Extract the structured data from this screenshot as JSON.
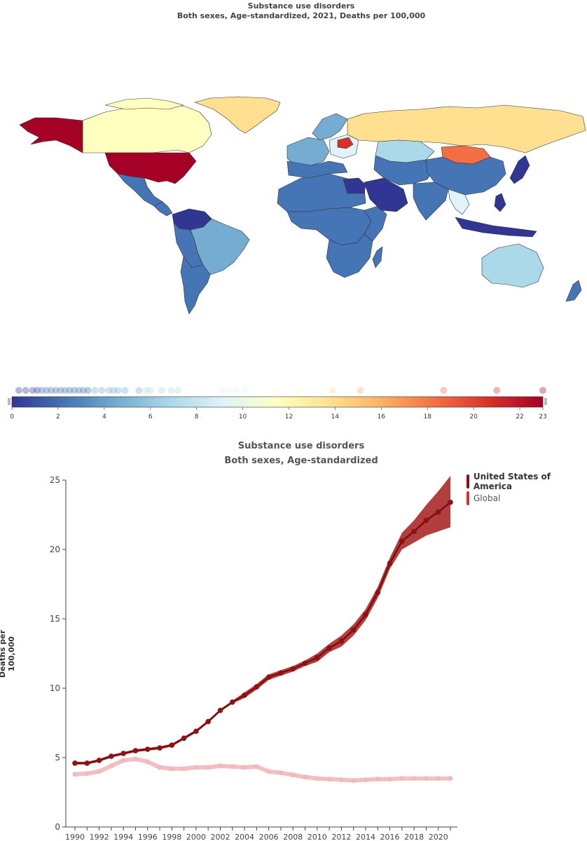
{
  "map": {
    "title_line1": "Substance use disorders",
    "title_line2": "Both sexes, Age-standardized, 2021, Deaths per 100,000",
    "scale": {
      "min": 0,
      "max": 23,
      "ticks": [
        0,
        2,
        4,
        6,
        8,
        10,
        12,
        14,
        16,
        18,
        20,
        22,
        23
      ],
      "colors": [
        "#313695",
        "#4575b4",
        "#74add1",
        "#abd9e9",
        "#e0f3f8",
        "#ffffbf",
        "#fee090",
        "#fdae61",
        "#f46d43",
        "#d73027",
        "#a50026"
      ],
      "dots": [
        0.3,
        0.6,
        0.9,
        1.1,
        1.3,
        1.5,
        1.7,
        1.9,
        2.1,
        2.3,
        2.5,
        2.7,
        2.9,
        3.1,
        3.3,
        3.6,
        3.9,
        4.2,
        4.4,
        4.6,
        4.9,
        5.5,
        5.8,
        6.0,
        6.5,
        6.9,
        7.2,
        9.1,
        9.4,
        9.7,
        10.1,
        11.4,
        12.4,
        13.9,
        15.1,
        18.7,
        21.0,
        23.0
      ]
    }
  },
  "chart_data": {
    "type": "line",
    "title": "Substance use disorders",
    "subtitle": "Both sexes, Age-standardized",
    "ylabel": "Deaths per 100,000",
    "ylim": [
      0,
      25
    ],
    "yticks": [
      0,
      5,
      10,
      15,
      20,
      25
    ],
    "xlim": [
      1990,
      2021
    ],
    "xticks": [
      1990,
      1992,
      1994,
      1996,
      1998,
      2000,
      2002,
      2004,
      2006,
      2008,
      2010,
      2012,
      2014,
      2016,
      2018,
      2020
    ],
    "x": [
      1990,
      1991,
      1992,
      1993,
      1994,
      1995,
      1996,
      1997,
      1998,
      1999,
      2000,
      2001,
      2002,
      2003,
      2004,
      2005,
      2006,
      2007,
      2008,
      2009,
      2010,
      2011,
      2012,
      2013,
      2014,
      2015,
      2016,
      2017,
      2018,
      2019,
      2020,
      2021
    ],
    "series": [
      {
        "name": "United States of America",
        "color": "#a51c1c",
        "values": [
          4.6,
          4.6,
          4.8,
          5.1,
          5.3,
          5.5,
          5.6,
          5.7,
          5.9,
          6.4,
          6.9,
          7.6,
          8.4,
          9.0,
          9.5,
          10.1,
          10.8,
          11.1,
          11.4,
          11.8,
          12.2,
          12.9,
          13.4,
          14.2,
          15.3,
          16.9,
          19.0,
          20.6,
          21.3,
          22.1,
          22.7,
          23.4
        ],
        "lower": [
          4.5,
          4.5,
          4.7,
          5.0,
          5.2,
          5.4,
          5.5,
          5.6,
          5.8,
          6.3,
          6.8,
          7.5,
          8.3,
          8.9,
          9.3,
          9.9,
          10.6,
          10.9,
          11.2,
          11.6,
          11.9,
          12.6,
          13.0,
          13.8,
          14.9,
          16.5,
          18.6,
          20.0,
          20.5,
          21.0,
          21.3,
          21.6
        ],
        "upper": [
          4.7,
          4.7,
          4.9,
          5.2,
          5.4,
          5.6,
          5.7,
          5.8,
          6.0,
          6.5,
          7.0,
          7.7,
          8.5,
          9.1,
          9.7,
          10.3,
          11.0,
          11.3,
          11.6,
          12.0,
          12.5,
          13.2,
          13.8,
          14.6,
          15.7,
          17.3,
          19.4,
          21.2,
          22.1,
          23.2,
          24.2,
          25.3
        ]
      },
      {
        "name": "Global",
        "color": "#f2b8bd",
        "values": [
          3.8,
          3.85,
          4.0,
          4.4,
          4.8,
          4.9,
          4.7,
          4.3,
          4.2,
          4.2,
          4.3,
          4.3,
          4.4,
          4.35,
          4.3,
          4.35,
          4.0,
          3.9,
          3.75,
          3.6,
          3.5,
          3.45,
          3.4,
          3.35,
          3.4,
          3.45,
          3.45,
          3.5,
          3.5,
          3.5,
          3.5,
          3.5
        ]
      }
    ]
  }
}
